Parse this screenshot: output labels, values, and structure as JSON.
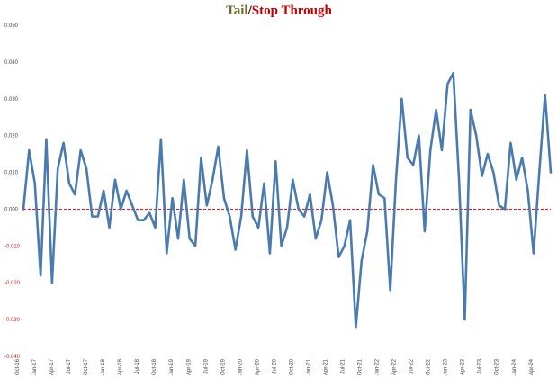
{
  "title": {
    "part1": "Tail",
    "sep": "/",
    "part2": "Stop Through",
    "part1_color": "#6b6b2a",
    "sep_color": "#000000",
    "part2_color": "#c00000"
  },
  "chart_data": {
    "type": "line",
    "title": "Tail/Stop Through",
    "xlabel": "",
    "ylabel": "",
    "ylim": [
      -0.04,
      0.05
    ],
    "yticks": [
      0.05,
      0.04,
      0.03,
      0.02,
      0.01,
      0.0,
      -0.01,
      -0.02,
      -0.03,
      -0.04
    ],
    "ytick_labels": [
      "0.050",
      "0.040",
      "0.030",
      "0.020",
      "0.010",
      "0.000",
      "-0.010",
      "-0.020",
      "-0.030",
      "-0.040"
    ],
    "xtick_labels": [
      "Oct-16",
      "Jan-17",
      "Apr-17",
      "Jul-17",
      "Oct-17",
      "Jan-18",
      "Apr-18",
      "Jul-18",
      "Oct-18",
      "Jan-19",
      "Apr-19",
      "Jul-19",
      "Oct-19",
      "Jan-20",
      "Apr-20",
      "Jul-20",
      "Oct-20",
      "Jan-21",
      "Apr-21",
      "Jul-21",
      "Oct-21",
      "Jan-22",
      "Apr-22",
      "Jul-22",
      "Oct-22",
      "Jan-23",
      "Apr-23",
      "Jul-23",
      "Oct-23",
      "Jan-24",
      "Apr-24"
    ],
    "grid": false,
    "series": [
      {
        "color": "#4a7bb0",
        "values": [
          0.0,
          0.016,
          0.007,
          -0.018,
          0.019,
          -0.02,
          0.011,
          0.018,
          0.007,
          0.004,
          0.016,
          0.011,
          -0.002,
          -0.002,
          0.005,
          -0.005,
          0.008,
          0.0,
          0.005,
          0.001,
          -0.003,
          -0.003,
          -0.001,
          -0.005,
          0.019,
          -0.012,
          0.003,
          -0.008,
          0.008,
          -0.008,
          -0.01,
          0.014,
          0.001,
          0.008,
          0.017,
          0.003,
          -0.002,
          -0.011,
          -0.002,
          0.016,
          -0.002,
          -0.005,
          0.007,
          -0.012,
          0.013,
          -0.01,
          -0.005,
          0.008,
          0.0,
          -0.002,
          0.004,
          -0.008,
          -0.003,
          0.01,
          0.001,
          -0.013,
          -0.01,
          -0.003,
          -0.032,
          -0.014,
          -0.006,
          0.012,
          0.004,
          0.003,
          -0.022,
          0.008,
          0.03,
          0.014,
          0.012,
          0.02,
          -0.006,
          0.016,
          0.027,
          0.016,
          0.034,
          0.037,
          0.008,
          -0.03,
          0.027,
          0.02,
          0.009,
          0.015,
          0.01,
          0.001,
          0.0,
          0.018,
          0.008,
          0.014,
          0.005,
          -0.012,
          0.01,
          0.031,
          0.01
        ]
      }
    ],
    "reference_line": {
      "y": 0.0,
      "color": "#e02020",
      "style": "dashed"
    }
  }
}
